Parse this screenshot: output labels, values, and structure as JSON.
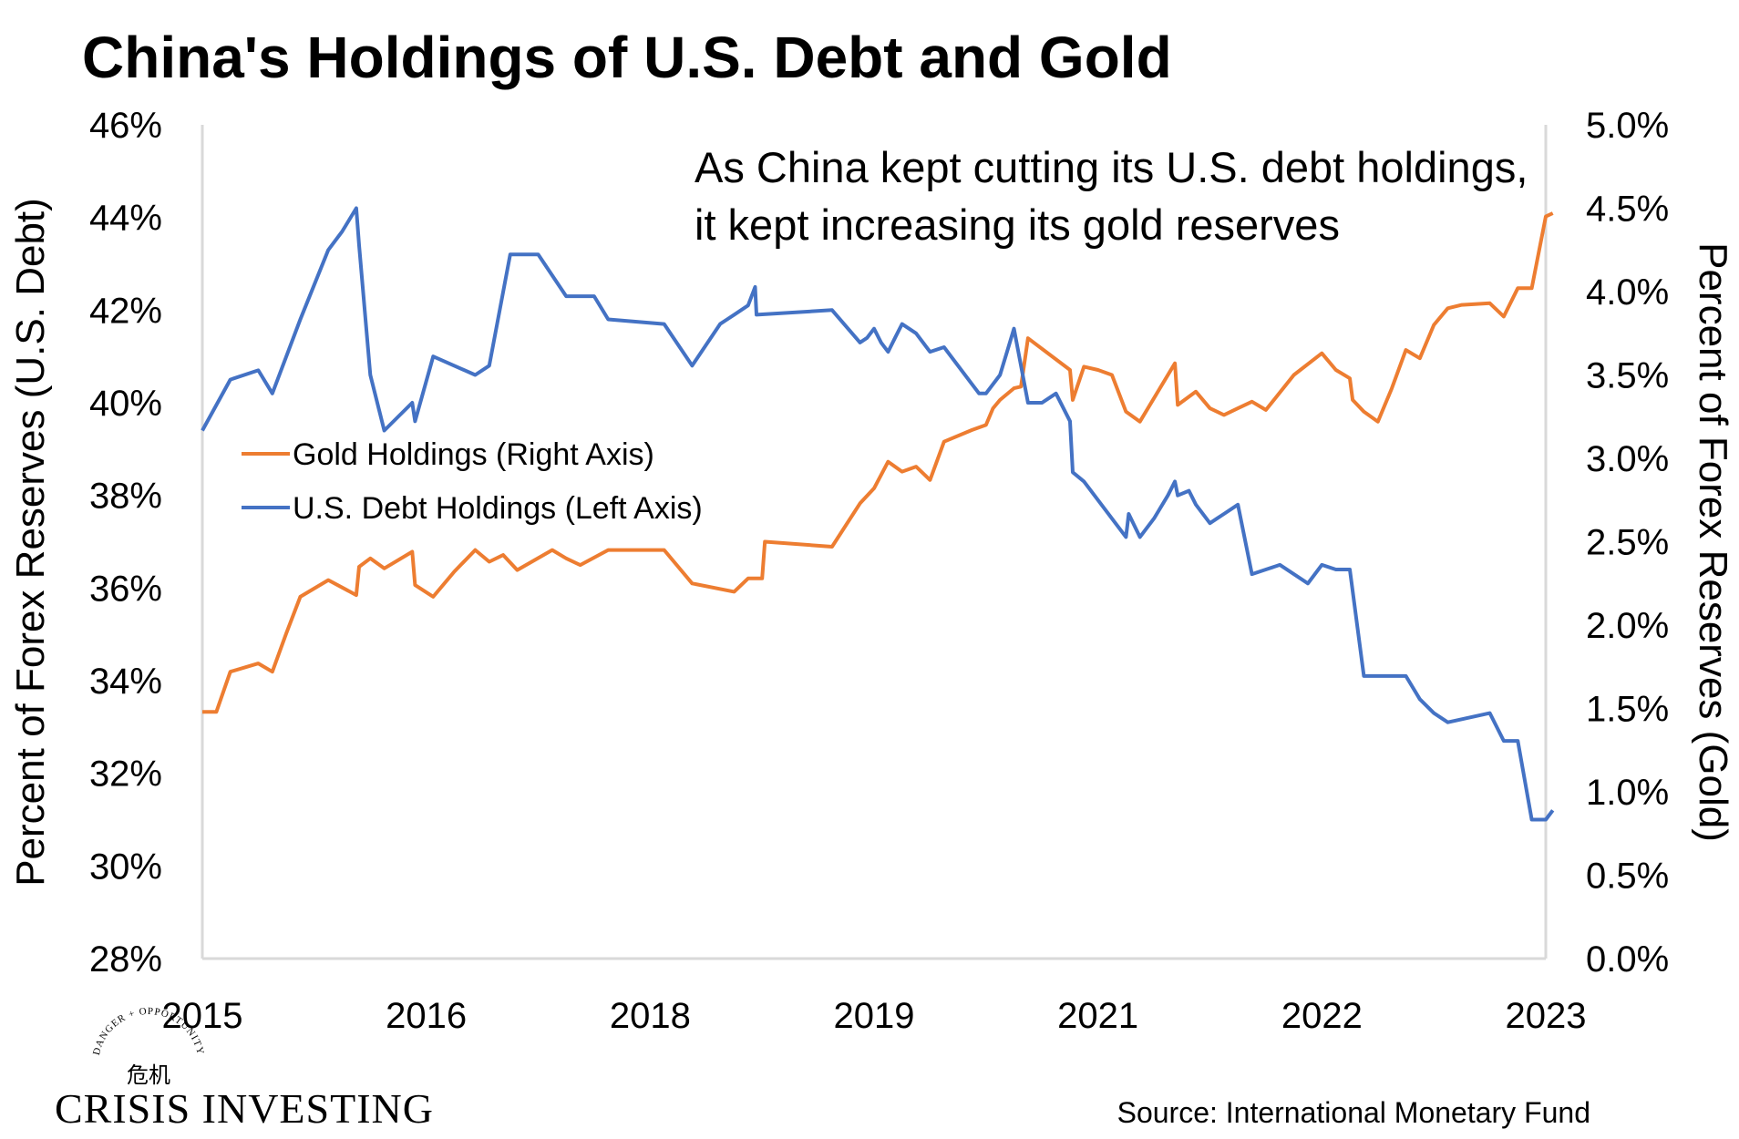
{
  "chart_data": {
    "type": "line",
    "title": "China's Holdings of U.S. Debt and Gold",
    "annotation": [
      "As China kept cutting its U.S. debt holdings,",
      "it kept increasing its gold reserves"
    ],
    "source": "Source: International Monetary Fund",
    "x_tick_labels": [
      "2015",
      "2016",
      "2018",
      "2019",
      "2021",
      "2022",
      "2023"
    ],
    "xlim": [
      0,
      96
    ],
    "left_axis": {
      "label": "Percent of Forex Reserves (U.S. Debt)",
      "ylim": [
        28,
        46
      ],
      "ticks": [
        "28%",
        "30%",
        "32%",
        "34%",
        "36%",
        "38%",
        "40%",
        "42%",
        "44%",
        "46%"
      ]
    },
    "right_axis": {
      "label": "Percent of Forex Reserves (Gold)",
      "ylim": [
        0,
        5
      ],
      "ticks": [
        "0.0%",
        "0.5%",
        "1.0%",
        "1.5%",
        "2.0%",
        "2.5%",
        "3.0%",
        "3.5%",
        "4.0%",
        "4.5%",
        "5.0%"
      ]
    },
    "legend": [
      {
        "name": "Gold Holdings (Right Axis)",
        "color": "#ED7D31"
      },
      {
        "name": "U.S. Debt Holdings (Left Axis)",
        "color": "#4472C4"
      }
    ],
    "series": [
      {
        "name": "U.S. Debt Holdings (Left Axis)",
        "axis": "left",
        "color": "#4472C4",
        "points": [
          [
            0,
            39.4
          ],
          [
            2,
            40.5
          ],
          [
            4,
            40.7
          ],
          [
            5,
            40.2
          ],
          [
            7,
            41.8
          ],
          [
            9,
            43.3
          ],
          [
            10,
            43.7
          ],
          [
            11,
            44.2
          ],
          [
            11.2,
            43.4
          ],
          [
            12,
            40.6
          ],
          [
            13,
            39.4
          ],
          [
            15,
            40.0
          ],
          [
            15.2,
            39.6
          ],
          [
            16.5,
            41.0
          ],
          [
            19.5,
            40.6
          ],
          [
            20.5,
            40.8
          ],
          [
            22,
            43.2
          ],
          [
            24,
            43.2
          ],
          [
            26,
            42.3
          ],
          [
            28,
            42.3
          ],
          [
            29,
            41.8
          ],
          [
            33,
            41.7
          ],
          [
            35,
            40.8
          ],
          [
            37,
            41.7
          ],
          [
            37.5,
            41.8
          ],
          [
            38,
            41.9
          ],
          [
            39,
            42.1
          ],
          [
            39.5,
            42.5
          ],
          [
            39.6,
            41.9
          ],
          [
            45,
            42.0
          ],
          [
            47,
            41.3
          ],
          [
            47.5,
            41.4
          ],
          [
            48,
            41.6
          ],
          [
            48.5,
            41.3
          ],
          [
            49,
            41.1
          ],
          [
            49.5,
            41.4
          ],
          [
            50,
            41.7
          ],
          [
            51,
            41.5
          ],
          [
            52,
            41.1
          ],
          [
            53,
            41.2
          ],
          [
            55,
            40.4
          ],
          [
            55.5,
            40.2
          ],
          [
            56,
            40.2
          ],
          [
            57,
            40.6
          ],
          [
            57.5,
            41.1
          ],
          [
            58,
            41.6
          ],
          [
            59,
            40.0
          ],
          [
            60,
            40.0
          ],
          [
            61,
            40.2
          ],
          [
            62,
            39.6
          ],
          [
            62.2,
            38.5
          ],
          [
            63,
            38.3
          ],
          [
            65,
            37.5
          ],
          [
            66,
            37.1
          ],
          [
            66.2,
            37.6
          ],
          [
            67,
            37.1
          ],
          [
            68,
            37.5
          ],
          [
            69,
            38.0
          ],
          [
            69.5,
            38.3
          ],
          [
            69.7,
            38.0
          ],
          [
            70.5,
            38.1
          ],
          [
            71,
            37.8
          ],
          [
            72,
            37.4
          ],
          [
            72.5,
            37.5
          ],
          [
            73,
            37.6
          ],
          [
            74,
            37.8
          ],
          [
            75,
            36.3
          ],
          [
            76,
            36.4
          ],
          [
            77,
            36.5
          ],
          [
            79,
            36.1
          ],
          [
            80,
            36.5
          ],
          [
            81,
            36.4
          ],
          [
            82,
            36.4
          ],
          [
            83,
            34.1
          ],
          [
            86,
            34.1
          ],
          [
            87,
            33.6
          ],
          [
            88,
            33.3
          ],
          [
            89,
            33.1
          ],
          [
            92,
            33.3
          ],
          [
            93,
            32.7
          ],
          [
            94,
            32.7
          ],
          [
            95,
            31.0
          ],
          [
            96,
            31.0
          ],
          [
            96.5,
            31.2
          ]
        ]
      },
      {
        "name": "Gold Holdings (Right Axis)",
        "axis": "right",
        "color": "#ED7D31",
        "points": [
          [
            0,
            1.48
          ],
          [
            1,
            1.48
          ],
          [
            2,
            1.72
          ],
          [
            4,
            1.77
          ],
          [
            5,
            1.72
          ],
          [
            6,
            1.95
          ],
          [
            7,
            2.17
          ],
          [
            9,
            2.27
          ],
          [
            11,
            2.18
          ],
          [
            11.2,
            2.35
          ],
          [
            12,
            2.4
          ],
          [
            13,
            2.34
          ],
          [
            15,
            2.44
          ],
          [
            15.2,
            2.24
          ],
          [
            16.5,
            2.17
          ],
          [
            18,
            2.32
          ],
          [
            19.5,
            2.45
          ],
          [
            20.5,
            2.38
          ],
          [
            21.5,
            2.42
          ],
          [
            22.5,
            2.33
          ],
          [
            25,
            2.45
          ],
          [
            26,
            2.4
          ],
          [
            27,
            2.36
          ],
          [
            29,
            2.45
          ],
          [
            33,
            2.45
          ],
          [
            35,
            2.25
          ],
          [
            38,
            2.2
          ],
          [
            39,
            2.28
          ],
          [
            40,
            2.28
          ],
          [
            40.2,
            2.5
          ],
          [
            45,
            2.47
          ],
          [
            47,
            2.73
          ],
          [
            48,
            2.82
          ],
          [
            49,
            2.98
          ],
          [
            50,
            2.92
          ],
          [
            51,
            2.95
          ],
          [
            52,
            2.87
          ],
          [
            53,
            3.1
          ],
          [
            55,
            3.17
          ],
          [
            56,
            3.2
          ],
          [
            56.5,
            3.3
          ],
          [
            57,
            3.35
          ],
          [
            58,
            3.42
          ],
          [
            58.5,
            3.43
          ],
          [
            59,
            3.72
          ],
          [
            62,
            3.53
          ],
          [
            62.2,
            3.35
          ],
          [
            63,
            3.55
          ],
          [
            64,
            3.53
          ],
          [
            65,
            3.5
          ],
          [
            66,
            3.28
          ],
          [
            67,
            3.22
          ],
          [
            69.5,
            3.57
          ],
          [
            69.7,
            3.32
          ],
          [
            71,
            3.4
          ],
          [
            72,
            3.3
          ],
          [
            73,
            3.26
          ],
          [
            74,
            3.3
          ],
          [
            75,
            3.34
          ],
          [
            76,
            3.29
          ],
          [
            78,
            3.5
          ],
          [
            80,
            3.63
          ],
          [
            81,
            3.53
          ],
          [
            82,
            3.48
          ],
          [
            82.2,
            3.35
          ],
          [
            83,
            3.28
          ],
          [
            84,
            3.22
          ],
          [
            85,
            3.42
          ],
          [
            86,
            3.65
          ],
          [
            87,
            3.6
          ],
          [
            88,
            3.8
          ],
          [
            89,
            3.9
          ],
          [
            90,
            3.92
          ],
          [
            92,
            3.93
          ],
          [
            93,
            3.85
          ],
          [
            94,
            4.02
          ],
          [
            95,
            4.02
          ],
          [
            96,
            4.45
          ],
          [
            96.5,
            4.47
          ]
        ]
      }
    ]
  },
  "brand": {
    "name": "CRISIS INVESTING",
    "tagline": "DANGER + OPPORTUNITY",
    "glyphs": "危机"
  }
}
